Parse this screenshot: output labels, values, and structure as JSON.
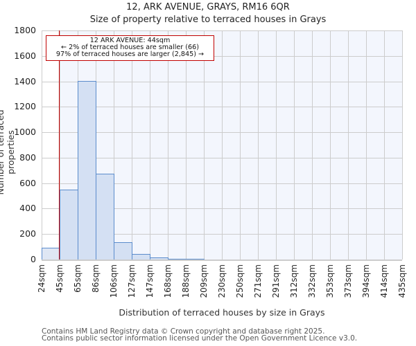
{
  "header": {
    "title": "12, ARK AVENUE, GRAYS, RM16 6QR",
    "subtitle": "Size of property relative to terraced houses in Grays"
  },
  "annotation": {
    "line1": "12 ARK AVENUE: 44sqm",
    "line2": "← 2% of terraced houses are smaller (66)",
    "line3": "97% of terraced houses are larger (2,845) →"
  },
  "axes": {
    "ylabel": "Number of terraced properties",
    "xlabel": "Distribution of terraced houses by size in Grays",
    "yticks": [
      "0",
      "200",
      "400",
      "600",
      "800",
      "1000",
      "1200",
      "1400",
      "1600",
      "1800"
    ],
    "xticks": [
      "24sqm",
      "45sqm",
      "65sqm",
      "86sqm",
      "106sqm",
      "127sqm",
      "147sqm",
      "168sqm",
      "188sqm",
      "209sqm",
      "230sqm",
      "250sqm",
      "271sqm",
      "291sqm",
      "312sqm",
      "332sqm",
      "353sqm",
      "373sqm",
      "394sqm",
      "414sqm",
      "435sqm"
    ]
  },
  "footer": {
    "line1": "Contains HM Land Registry data © Crown copyright and database right 2025.",
    "line2": "Contains public sector information licensed under the Open Government Licence v3.0."
  },
  "colors": {
    "bar_fill": "#d4e0f3",
    "bar_edge": "#5b8ccc",
    "marker": "#c00000",
    "plot_bg": "#f3f6fd"
  },
  "chart_data": {
    "type": "bar",
    "title": "12, ARK AVENUE, GRAYS, RM16 6QR",
    "subtitle": "Size of property relative to terraced houses in Grays",
    "xlabel": "Distribution of terraced houses by size in Grays",
    "ylabel": "Number of terraced properties",
    "categories": [
      "24sqm",
      "45sqm",
      "65sqm",
      "86sqm",
      "106sqm",
      "127sqm",
      "147sqm",
      "168sqm",
      "188sqm",
      "209sqm",
      "230sqm",
      "250sqm",
      "271sqm",
      "291sqm",
      "312sqm",
      "332sqm",
      "353sqm",
      "373sqm",
      "394sqm",
      "414sqm"
    ],
    "bin_edges": [
      24,
      45,
      65,
      86,
      106,
      127,
      147,
      168,
      188,
      209,
      230,
      250,
      271,
      291,
      312,
      332,
      353,
      373,
      394,
      414,
      435
    ],
    "values": [
      92,
      550,
      1405,
      676,
      136,
      44,
      14,
      4,
      3,
      0,
      0,
      0,
      0,
      0,
      0,
      0,
      0,
      0,
      0,
      0
    ],
    "ylim": [
      0,
      1800
    ],
    "yticks": [
      0,
      200,
      400,
      600,
      800,
      1000,
      1200,
      1400,
      1600,
      1800
    ],
    "grid": true,
    "marker": {
      "x": 44,
      "label": "12 ARK AVENUE: 44sqm"
    },
    "annotations": [
      "12 ARK AVENUE: 44sqm",
      "← 2% of terraced houses are smaller (66)",
      "97% of terraced houses are larger (2,845) →"
    ]
  }
}
